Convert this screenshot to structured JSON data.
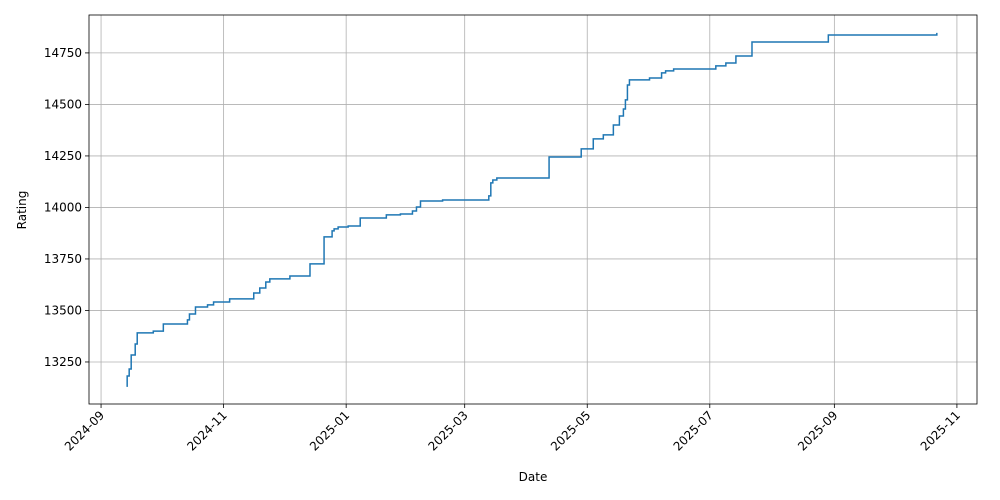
{
  "chart_data": {
    "type": "step",
    "x_label": "Date",
    "y_label": "Rating",
    "color": "#1f77b4",
    "grid": true,
    "x": [
      "2024-09-14",
      "2024-09-14",
      "2024-09-15",
      "2024-09-16",
      "2024-09-18",
      "2024-09-19",
      "2024-09-27",
      "2024-10-02",
      "2024-10-14",
      "2024-10-15",
      "2024-10-18",
      "2024-10-24",
      "2024-10-27",
      "2024-11-04",
      "2024-11-16",
      "2024-11-19",
      "2024-11-22",
      "2024-11-24",
      "2024-12-04",
      "2024-12-14",
      "2024-12-21",
      "2024-12-25",
      "2024-12-26",
      "2024-12-28",
      "2025-01-02",
      "2025-01-08",
      "2025-01-21",
      "2025-01-28",
      "2025-02-03",
      "2025-02-05",
      "2025-02-07",
      "2025-02-18",
      "2025-03-13",
      "2025-03-14",
      "2025-03-15",
      "2025-03-17",
      "2025-04-12",
      "2025-04-28",
      "2025-05-04",
      "2025-05-09",
      "2025-05-14",
      "2025-05-17",
      "2025-05-19",
      "2025-05-20",
      "2025-05-21",
      "2025-05-22",
      "2025-06-01",
      "2025-06-07",
      "2025-06-09",
      "2025-06-13",
      "2025-07-04",
      "2025-07-09",
      "2025-07-14",
      "2025-07-22",
      "2025-08-29",
      "2025-10-21",
      "2025-10-22"
    ],
    "values": [
      13129,
      13182,
      13216,
      13284,
      13337,
      13391,
      13400,
      13434,
      13454,
      13483,
      13517,
      13527,
      13541,
      13556,
      13585,
      13609,
      13638,
      13653,
      13667,
      13726,
      13857,
      13886,
      13896,
      13905,
      13910,
      13949,
      13964,
      13968,
      13983,
      14002,
      14031,
      14036,
      14056,
      14119,
      14133,
      14143,
      14245,
      14284,
      14333,
      14352,
      14400,
      14444,
      14478,
      14522,
      14594,
      14619,
      14628,
      14653,
      14663,
      14672,
      14687,
      14701,
      14735,
      14803,
      14837,
      14837,
      14847
    ],
    "xlim": [
      "2024-08-26",
      "2025-11-11"
    ],
    "xticks": [
      "2024-09",
      "2024-11",
      "2025-01",
      "2025-03",
      "2025-05",
      "2025-07",
      "2025-09",
      "2025-11"
    ],
    "ylim": [
      13046,
      14934
    ],
    "yticks": [
      13250,
      13500,
      13750,
      14000,
      14250,
      14500,
      14750
    ]
  }
}
